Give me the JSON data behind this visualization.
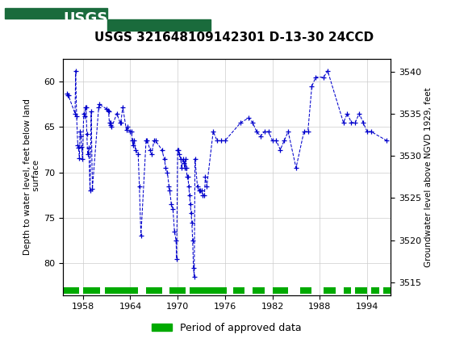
{
  "title": "USGS 321648109142301 D-13-30 24CCD",
  "ylabel_left": "Depth to water level, feet below land\n surface",
  "ylabel_right": "Groundwater level above NGVD 1929, feet",
  "xlim": [
    1955.5,
    1997.0
  ],
  "ylim_left": [
    83.5,
    57.5
  ],
  "ylim_right": [
    3513.5,
    3541.5
  ],
  "xticks": [
    1958,
    1964,
    1970,
    1976,
    1982,
    1988,
    1994
  ],
  "yticks_left": [
    60,
    65,
    70,
    75,
    80
  ],
  "yticks_right": [
    3515,
    3520,
    3525,
    3530,
    3535,
    3540
  ],
  "header_color": "#1a6b3c",
  "data_color": "#0000cc",
  "approved_color": "#00aa00",
  "background_color": "#ffffff",
  "grid_color": "#cccccc",
  "data_points": [
    [
      1956.0,
      61.3
    ],
    [
      1956.08,
      61.5
    ],
    [
      1956.15,
      61.5
    ],
    [
      1957.0,
      63.5
    ],
    [
      1957.08,
      58.8
    ],
    [
      1957.2,
      63.8
    ],
    [
      1957.35,
      67.0
    ],
    [
      1957.45,
      67.3
    ],
    [
      1957.55,
      68.4
    ],
    [
      1957.65,
      65.5
    ],
    [
      1957.75,
      66.0
    ],
    [
      1957.85,
      67.2
    ],
    [
      1957.95,
      68.5
    ],
    [
      1958.1,
      63.5
    ],
    [
      1958.2,
      63.8
    ],
    [
      1958.3,
      62.8
    ],
    [
      1958.4,
      62.8
    ],
    [
      1958.5,
      65.8
    ],
    [
      1958.6,
      68.0
    ],
    [
      1958.75,
      67.3
    ],
    [
      1958.9,
      72.0
    ],
    [
      1959.05,
      63.3
    ],
    [
      1959.2,
      71.8
    ],
    [
      1960.0,
      62.8
    ],
    [
      1960.1,
      62.5
    ],
    [
      1961.0,
      63.0
    ],
    [
      1961.15,
      63.2
    ],
    [
      1961.25,
      63.3
    ],
    [
      1961.35,
      64.5
    ],
    [
      1961.45,
      64.8
    ],
    [
      1961.55,
      64.5
    ],
    [
      1961.65,
      65.0
    ],
    [
      1962.3,
      63.5
    ],
    [
      1962.7,
      64.5
    ],
    [
      1962.8,
      64.5
    ],
    [
      1963.05,
      62.8
    ],
    [
      1963.5,
      65.3
    ],
    [
      1963.65,
      65.0
    ],
    [
      1964.0,
      65.5
    ],
    [
      1964.15,
      65.5
    ],
    [
      1964.25,
      66.5
    ],
    [
      1964.35,
      67.0
    ],
    [
      1964.5,
      66.5
    ],
    [
      1964.65,
      67.5
    ],
    [
      1965.0,
      68.0
    ],
    [
      1965.15,
      71.5
    ],
    [
      1965.35,
      77.0
    ],
    [
      1966.0,
      66.5
    ],
    [
      1966.15,
      66.5
    ],
    [
      1966.5,
      67.5
    ],
    [
      1966.7,
      68.0
    ],
    [
      1967.0,
      66.5
    ],
    [
      1967.2,
      66.5
    ],
    [
      1968.0,
      67.5
    ],
    [
      1968.3,
      68.5
    ],
    [
      1968.5,
      69.5
    ],
    [
      1968.7,
      70.0
    ],
    [
      1968.9,
      71.5
    ],
    [
      1969.0,
      72.0
    ],
    [
      1969.2,
      73.5
    ],
    [
      1969.4,
      74.0
    ],
    [
      1969.6,
      76.5
    ],
    [
      1969.8,
      77.5
    ],
    [
      1969.87,
      79.5
    ],
    [
      1970.0,
      67.5
    ],
    [
      1970.1,
      67.5
    ],
    [
      1970.2,
      68.0
    ],
    [
      1970.4,
      68.5
    ],
    [
      1970.5,
      69.5
    ],
    [
      1970.7,
      68.5
    ],
    [
      1970.8,
      69.0
    ],
    [
      1970.9,
      69.5
    ],
    [
      1971.0,
      68.5
    ],
    [
      1971.1,
      69.5
    ],
    [
      1971.2,
      70.5
    ],
    [
      1971.3,
      70.5
    ],
    [
      1971.4,
      71.5
    ],
    [
      1971.5,
      72.5
    ],
    [
      1971.6,
      73.5
    ],
    [
      1971.7,
      74.5
    ],
    [
      1971.8,
      75.5
    ],
    [
      1971.9,
      77.5
    ],
    [
      1972.0,
      80.5
    ],
    [
      1972.1,
      81.5
    ],
    [
      1972.2,
      68.5
    ],
    [
      1972.5,
      71.5
    ],
    [
      1972.7,
      72.0
    ],
    [
      1972.8,
      72.0
    ],
    [
      1973.0,
      72.0
    ],
    [
      1973.2,
      72.5
    ],
    [
      1973.4,
      72.5
    ],
    [
      1973.5,
      70.5
    ],
    [
      1973.7,
      71.5
    ],
    [
      1974.5,
      65.5
    ],
    [
      1975.0,
      66.5
    ],
    [
      1975.5,
      66.5
    ],
    [
      1976.0,
      66.5
    ],
    [
      1978.0,
      64.5
    ],
    [
      1979.0,
      64.0
    ],
    [
      1979.5,
      64.5
    ],
    [
      1980.0,
      65.5
    ],
    [
      1980.5,
      66.0
    ],
    [
      1981.0,
      65.5
    ],
    [
      1981.5,
      65.5
    ],
    [
      1982.0,
      66.5
    ],
    [
      1982.5,
      66.5
    ],
    [
      1983.0,
      67.5
    ],
    [
      1983.5,
      66.5
    ],
    [
      1984.0,
      65.5
    ],
    [
      1985.0,
      69.5
    ],
    [
      1986.0,
      65.5
    ],
    [
      1986.5,
      65.5
    ],
    [
      1987.0,
      60.5
    ],
    [
      1987.5,
      59.5
    ],
    [
      1988.5,
      59.5
    ],
    [
      1989.0,
      58.8
    ],
    [
      1991.0,
      64.5
    ],
    [
      1991.5,
      63.5
    ],
    [
      1992.0,
      64.5
    ],
    [
      1992.5,
      64.5
    ],
    [
      1993.0,
      63.5
    ],
    [
      1993.5,
      64.5
    ],
    [
      1994.0,
      65.5
    ],
    [
      1994.5,
      65.5
    ],
    [
      1996.5,
      66.5
    ]
  ],
  "approved_bars": [
    [
      1955.6,
      1957.5
    ],
    [
      1958.0,
      1960.2
    ],
    [
      1960.8,
      1965.0
    ],
    [
      1966.0,
      1968.0
    ],
    [
      1969.0,
      1971.0
    ],
    [
      1971.5,
      1976.2
    ],
    [
      1977.0,
      1978.5
    ],
    [
      1979.5,
      1981.0
    ],
    [
      1982.0,
      1984.0
    ],
    [
      1985.5,
      1987.0
    ],
    [
      1988.5,
      1990.0
    ],
    [
      1991.0,
      1992.0
    ],
    [
      1992.5,
      1994.0
    ],
    [
      1994.5,
      1995.5
    ],
    [
      1996.0,
      1997.0
    ]
  ],
  "legend_label": "Period of approved data"
}
